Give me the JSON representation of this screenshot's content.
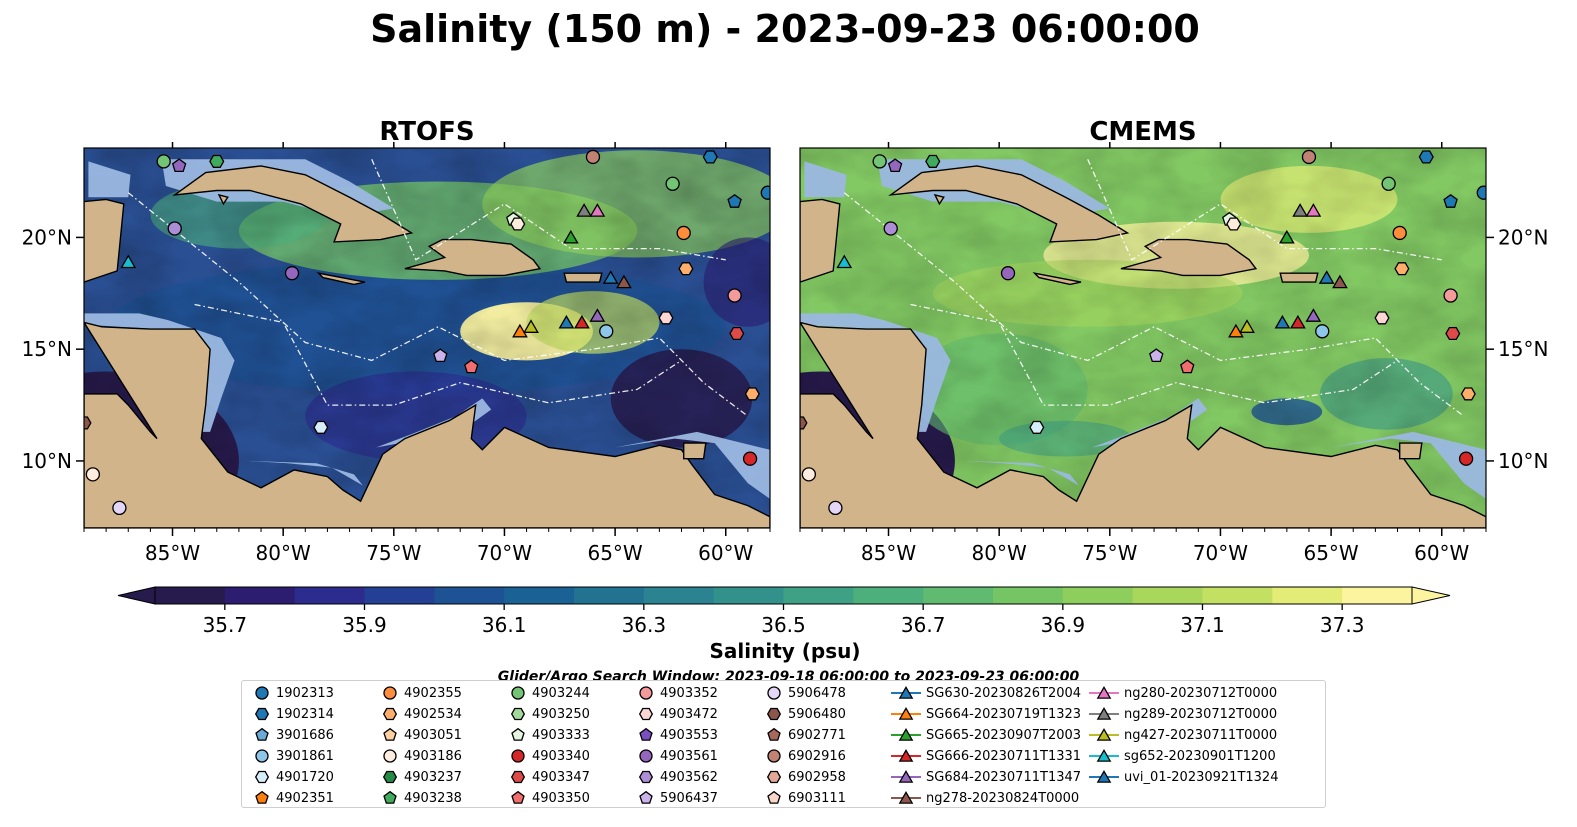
{
  "chart_data": {
    "type": "heatmap",
    "title": "Salinity (150 m) - 2023-09-23 06:00:00",
    "panels": [
      {
        "title": "RTOFS",
        "ocean_base": "#2a4f93"
      },
      {
        "title": "CMEMS",
        "ocean_base": "#82c863"
      }
    ],
    "x_ticks": [
      {
        "value": -85,
        "label": "85°W"
      },
      {
        "value": -80,
        "label": "80°W"
      },
      {
        "value": -75,
        "label": "75°W"
      },
      {
        "value": -70,
        "label": "70°W"
      },
      {
        "value": -65,
        "label": "65°W"
      },
      {
        "value": -60,
        "label": "60°W"
      }
    ],
    "y_ticks": [
      {
        "value": 10,
        "label": "10°N"
      },
      {
        "value": 15,
        "label": "15°N"
      },
      {
        "value": 20,
        "label": "20°N"
      }
    ],
    "xlim": [
      -89,
      -58
    ],
    "ylim": [
      7,
      24
    ],
    "colorbar": {
      "label": "Salinity (psu)",
      "range": [
        35.6,
        37.4
      ],
      "ticks": [
        "35.7",
        "35.9",
        "36.1",
        "36.3",
        "36.5",
        "36.7",
        "36.9",
        "37.1",
        "37.3"
      ],
      "colors": [
        "#271a4c",
        "#2c1d70",
        "#2b2c8e",
        "#233f96",
        "#1d5294",
        "#1a6294",
        "#227391",
        "#2b8290",
        "#33918c",
        "#3ea186",
        "#4daf7c",
        "#60bb70",
        "#75c565",
        "#8dce5d",
        "#a8d75c",
        "#c4e063",
        "#e2ec76",
        "#fdf4a0"
      ],
      "extend": "both"
    },
    "legend_title": "Glider/Argo Search Window: 2023-09-18 06:00:00 to 2023-09-23 06:00:00",
    "legend": [
      {
        "name": "1902313",
        "marker": "circle",
        "color": "#1f77b4"
      },
      {
        "name": "1902314",
        "marker": "hexagon",
        "color": "#1f77b4"
      },
      {
        "name": "3901686",
        "marker": "pentagon",
        "color": "#6aa9d8"
      },
      {
        "name": "3901861",
        "marker": "circle",
        "color": "#8ec5ea"
      },
      {
        "name": "4901720",
        "marker": "hexagon",
        "color": "#d7eef9"
      },
      {
        "name": "4902351",
        "marker": "pentagon",
        "color": "#ff7f0e"
      },
      {
        "name": "4902355",
        "marker": "circle",
        "color": "#fd8d3c"
      },
      {
        "name": "4902534",
        "marker": "hexagon",
        "color": "#fdae6b"
      },
      {
        "name": "4903051",
        "marker": "pentagon",
        "color": "#fdd0a2"
      },
      {
        "name": "4903186",
        "marker": "circle",
        "color": "#feedde"
      },
      {
        "name": "4903237",
        "marker": "hexagon",
        "color": "#238b45"
      },
      {
        "name": "4903238",
        "marker": "pentagon",
        "color": "#41ab5d"
      },
      {
        "name": "4903244",
        "marker": "circle",
        "color": "#74c476"
      },
      {
        "name": "4903250",
        "marker": "hexagon",
        "color": "#a1d99b"
      },
      {
        "name": "4903333",
        "marker": "pentagon",
        "color": "#e5f5e0"
      },
      {
        "name": "4903340",
        "marker": "circle",
        "color": "#d62728"
      },
      {
        "name": "4903347",
        "marker": "hexagon",
        "color": "#de4a4a"
      },
      {
        "name": "4903350",
        "marker": "pentagon",
        "color": "#f26d6d"
      },
      {
        "name": "4903352",
        "marker": "circle",
        "color": "#f49a9a"
      },
      {
        "name": "4903472",
        "marker": "hexagon",
        "color": "#fcd5d5"
      },
      {
        "name": "4903553",
        "marker": "pentagon",
        "color": "#7b4fbf"
      },
      {
        "name": "4903561",
        "marker": "circle",
        "color": "#9467bd"
      },
      {
        "name": "4903562",
        "marker": "hexagon",
        "color": "#ad8ed6"
      },
      {
        "name": "5906437",
        "marker": "pentagon",
        "color": "#c9b3ea"
      },
      {
        "name": "5906478",
        "marker": "circle",
        "color": "#e4d6f7"
      },
      {
        "name": "5906480",
        "marker": "hexagon",
        "color": "#8c564b"
      },
      {
        "name": "6902771",
        "marker": "pentagon",
        "color": "#a5685b"
      },
      {
        "name": "6902916",
        "marker": "circle",
        "color": "#c08272"
      },
      {
        "name": "6902958",
        "marker": "hexagon",
        "color": "#e2a896"
      },
      {
        "name": "6903111",
        "marker": "pentagon",
        "color": "#f8d6c9"
      },
      {
        "name": "SG630-20230826T2004",
        "marker": "triangle",
        "color": "#1f77b4"
      },
      {
        "name": "SG664-20230719T1323",
        "marker": "triangle",
        "color": "#ff7f0e"
      },
      {
        "name": "SG665-20230907T2003",
        "marker": "triangle",
        "color": "#2ca02c"
      },
      {
        "name": "SG666-20230711T1331",
        "marker": "triangle",
        "color": "#d62728"
      },
      {
        "name": "SG684-20230711T1347",
        "marker": "triangle",
        "color": "#9467bd"
      },
      {
        "name": "ng278-20230824T0000",
        "marker": "triangle",
        "color": "#8c564b"
      },
      {
        "name": "ng280-20230712T0000",
        "marker": "triangle",
        "color": "#e377c2"
      },
      {
        "name": "ng289-20230712T0000",
        "marker": "triangle",
        "color": "#7f7f7f"
      },
      {
        "name": "ng427-20230711T0000",
        "marker": "triangle",
        "color": "#bcbd22"
      },
      {
        "name": "sg652-20230901T1200",
        "marker": "triangle",
        "color": "#17becf"
      },
      {
        "name": "uvi_01-20230921T1324",
        "marker": "triangle",
        "color": "#1f77b4"
      }
    ],
    "observations": [
      {
        "lon": -85.4,
        "lat": 23.4,
        "marker": "circle",
        "color": "#74c476"
      },
      {
        "lon": -84.7,
        "lat": 23.2,
        "marker": "pentagon",
        "color": "#9467bd"
      },
      {
        "lon": -83.0,
        "lat": 23.4,
        "marker": "hexagon",
        "color": "#41ab5d"
      },
      {
        "lon": -84.9,
        "lat": 20.4,
        "marker": "circle",
        "color": "#ad8ed6"
      },
      {
        "lon": -79.6,
        "lat": 18.4,
        "marker": "circle",
        "color": "#9467bd"
      },
      {
        "lon": -88.6,
        "lat": 9.4,
        "marker": "circle",
        "color": "#feedde"
      },
      {
        "lon": -87.4,
        "lat": 7.9,
        "marker": "circle",
        "color": "#e4d6f7"
      },
      {
        "lon": -89.0,
        "lat": 11.7,
        "marker": "hexagon",
        "color": "#8c564b"
      },
      {
        "lon": -78.3,
        "lat": 11.5,
        "marker": "hexagon",
        "color": "#d7eef9"
      },
      {
        "lon": -72.9,
        "lat": 14.7,
        "marker": "pentagon",
        "color": "#c9b3ea"
      },
      {
        "lon": -71.5,
        "lat": 14.2,
        "marker": "pentagon",
        "color": "#f26d6d"
      },
      {
        "lon": -69.6,
        "lat": 20.8,
        "marker": "pentagon",
        "color": "#e5f5e0"
      },
      {
        "lon": -69.4,
        "lat": 20.6,
        "marker": "hexagon",
        "color": "#feedde"
      },
      {
        "lon": -66.0,
        "lat": 23.6,
        "marker": "circle",
        "color": "#c08272"
      },
      {
        "lon": -62.4,
        "lat": 22.4,
        "marker": "circle",
        "color": "#74c476"
      },
      {
        "lon": -61.9,
        "lat": 20.2,
        "marker": "circle",
        "color": "#fd8d3c"
      },
      {
        "lon": -61.8,
        "lat": 18.6,
        "marker": "hexagon",
        "color": "#fdae6b"
      },
      {
        "lon": -60.7,
        "lat": 23.6,
        "marker": "hexagon",
        "color": "#1f77b4"
      },
      {
        "lon": -59.6,
        "lat": 21.6,
        "marker": "pentagon",
        "color": "#1f77b4"
      },
      {
        "lon": -58.1,
        "lat": 22.0,
        "marker": "circle",
        "color": "#1f77b4"
      },
      {
        "lon": -59.6,
        "lat": 17.4,
        "marker": "circle",
        "color": "#f49a9a"
      },
      {
        "lon": -59.5,
        "lat": 15.7,
        "marker": "hexagon",
        "color": "#de4a4a"
      },
      {
        "lon": -62.7,
        "lat": 16.4,
        "marker": "hexagon",
        "color": "#fcd5d5"
      },
      {
        "lon": -65.4,
        "lat": 15.8,
        "marker": "circle",
        "color": "#8ec5ea"
      },
      {
        "lon": -58.8,
        "lat": 13.0,
        "marker": "hexagon",
        "color": "#fdae6b"
      },
      {
        "lon": -58.9,
        "lat": 10.1,
        "marker": "circle",
        "color": "#d62728"
      },
      {
        "lon": -87.0,
        "lat": 18.9,
        "marker": "triangle",
        "color": "#17becf"
      },
      {
        "lon": -69.3,
        "lat": 15.8,
        "marker": "triangle",
        "color": "#ff7f0e"
      },
      {
        "lon": -68.8,
        "lat": 16.0,
        "marker": "triangle",
        "color": "#bcbd22"
      },
      {
        "lon": -67.2,
        "lat": 16.2,
        "marker": "triangle",
        "color": "#1f77b4"
      },
      {
        "lon": -66.5,
        "lat": 16.2,
        "marker": "triangle",
        "color": "#d62728"
      },
      {
        "lon": -65.8,
        "lat": 16.5,
        "marker": "triangle",
        "color": "#9467bd"
      },
      {
        "lon": -67.0,
        "lat": 20.0,
        "marker": "triangle",
        "color": "#2ca02c"
      },
      {
        "lon": -66.4,
        "lat": 21.2,
        "marker": "triangle",
        "color": "#7f7f7f"
      },
      {
        "lon": -65.8,
        "lat": 21.2,
        "marker": "triangle",
        "color": "#e377c2"
      },
      {
        "lon": -65.2,
        "lat": 18.2,
        "marker": "triangle",
        "color": "#1f77b4"
      },
      {
        "lon": -64.6,
        "lat": 18.0,
        "marker": "triangle",
        "color": "#8c564b"
      }
    ]
  }
}
